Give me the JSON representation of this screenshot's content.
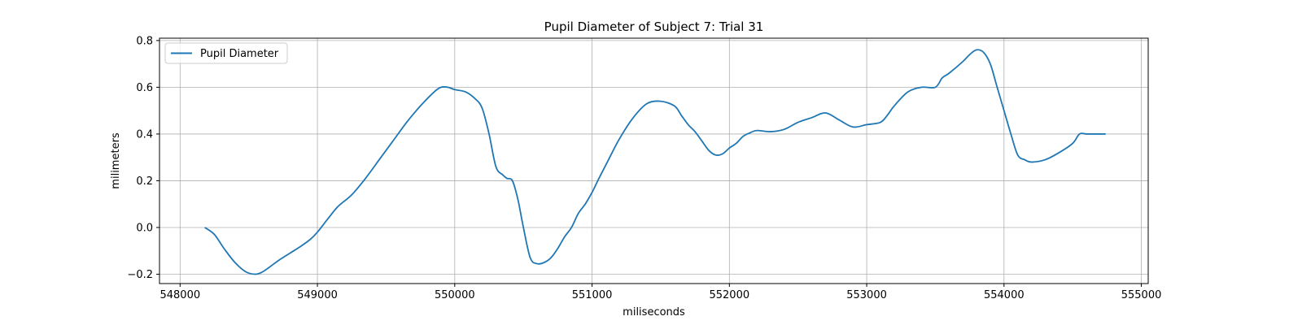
{
  "chart_data": {
    "type": "line",
    "title": "Pupil Diameter of Subject 7: Trial 31",
    "xlabel": "miliseconds",
    "ylabel": "milimeters",
    "xlim": [
      547850,
      555050
    ],
    "ylim": [
      -0.24,
      0.81
    ],
    "xticks": [
      548000,
      549000,
      550000,
      551000,
      552000,
      553000,
      554000,
      555000
    ],
    "yticks": [
      -0.2,
      0.0,
      0.2,
      0.4,
      0.6,
      0.8
    ],
    "ytick_labels": [
      "−0.2",
      "0.0",
      "0.2",
      "0.4",
      "0.6",
      "0.8"
    ],
    "grid": true,
    "legend_position": "top-left",
    "series": [
      {
        "name": "Pupil Diameter",
        "color": "#1f77b4",
        "x": [
          548180,
          548250,
          548320,
          548400,
          548480,
          548550,
          548600,
          548650,
          548720,
          548800,
          548880,
          548950,
          549000,
          549080,
          549150,
          549250,
          549350,
          549450,
          549550,
          549650,
          549750,
          549850,
          549900,
          549950,
          550000,
          550080,
          550150,
          550200,
          550250,
          550300,
          550350,
          550380,
          550420,
          550460,
          550500,
          550550,
          550600,
          550650,
          550700,
          550750,
          550800,
          550850,
          550900,
          550950,
          551000,
          551050,
          551120,
          551200,
          551300,
          551400,
          551500,
          551600,
          551650,
          551700,
          551750,
          551800,
          551850,
          551900,
          551950,
          552000,
          552050,
          552100,
          552150,
          552200,
          552300,
          552400,
          552500,
          552600,
          552700,
          552800,
          552900,
          553000,
          553100,
          553150,
          553200,
          553300,
          553400,
          553500,
          553550,
          553600,
          553700,
          553750,
          553800,
          553850,
          553900,
          553950,
          554000,
          554050,
          554100,
          554150,
          554200,
          554300,
          554400,
          554500,
          554550,
          554600,
          554650,
          554700,
          554740
        ],
        "y": [
          0.0,
          -0.03,
          -0.09,
          -0.15,
          -0.19,
          -0.2,
          -0.19,
          -0.17,
          -0.14,
          -0.11,
          -0.08,
          -0.05,
          -0.02,
          0.04,
          0.09,
          0.14,
          0.21,
          0.29,
          0.37,
          0.45,
          0.52,
          0.58,
          0.6,
          0.6,
          0.59,
          0.58,
          0.55,
          0.51,
          0.4,
          0.26,
          0.225,
          0.21,
          0.2,
          0.12,
          0.0,
          -0.13,
          -0.155,
          -0.15,
          -0.13,
          -0.09,
          -0.04,
          0.0,
          0.06,
          0.1,
          0.15,
          0.21,
          0.29,
          0.38,
          0.47,
          0.53,
          0.54,
          0.52,
          0.48,
          0.44,
          0.41,
          0.37,
          0.33,
          0.31,
          0.315,
          0.34,
          0.36,
          0.39,
          0.405,
          0.415,
          0.41,
          0.42,
          0.45,
          0.47,
          0.49,
          0.46,
          0.43,
          0.44,
          0.45,
          0.48,
          0.52,
          0.58,
          0.6,
          0.6,
          0.64,
          0.66,
          0.71,
          0.74,
          0.76,
          0.75,
          0.7,
          0.6,
          0.5,
          0.4,
          0.31,
          0.29,
          0.28,
          0.29,
          0.32,
          0.36,
          0.4,
          0.4,
          0.4,
          0.4,
          0.4
        ]
      }
    ]
  }
}
